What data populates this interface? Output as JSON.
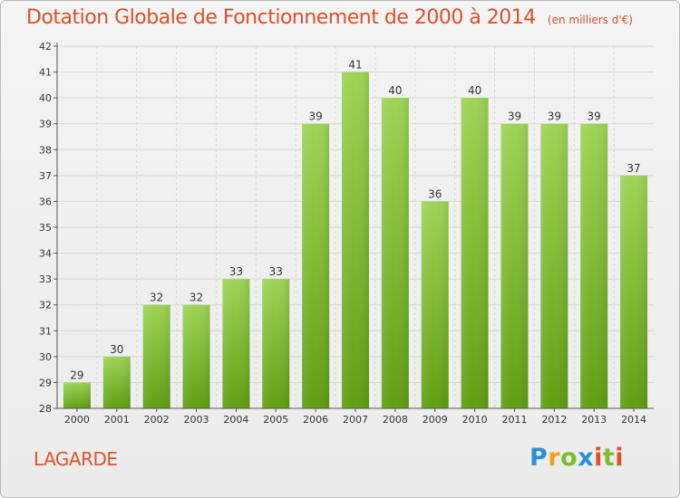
{
  "title": "Dotation Globale de Fonctionnement de 2000 à 2014",
  "subtitle": "(en milliers d'€)",
  "commune": "LAGARDE",
  "logo_text": "Proxiti",
  "colors": {
    "title": "#d9512c",
    "bar_top": "#9ed455",
    "bar_bottom": "#5f9e12",
    "axis": "#555555",
    "grid": "#d6d6d6"
  },
  "chart_data": {
    "type": "bar",
    "categories": [
      "2000",
      "2001",
      "2002",
      "2003",
      "2004",
      "2005",
      "2006",
      "2007",
      "2008",
      "2009",
      "2010",
      "2011",
      "2012",
      "2013",
      "2014"
    ],
    "values": [
      29,
      30,
      32,
      32,
      33,
      33,
      39,
      41,
      40,
      36,
      40,
      39,
      39,
      39,
      37
    ],
    "ylim": [
      28,
      42
    ],
    "yticks": [
      28,
      29,
      30,
      31,
      32,
      33,
      34,
      35,
      36,
      37,
      38,
      39,
      40,
      41,
      42
    ],
    "grid": true,
    "legend": "none",
    "xlabel": "",
    "ylabel": ""
  }
}
